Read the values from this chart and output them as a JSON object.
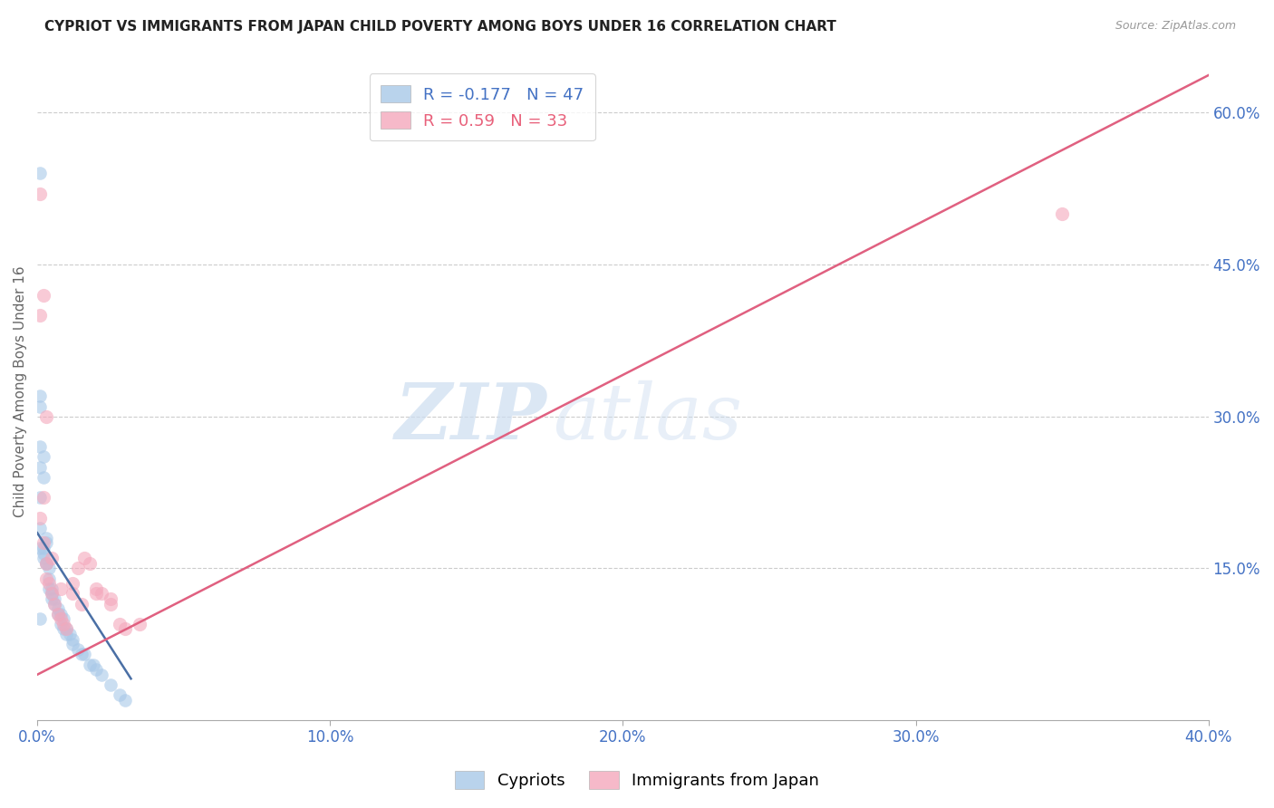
{
  "title": "CYPRIOT VS IMMIGRANTS FROM JAPAN CHILD POVERTY AMONG BOYS UNDER 16 CORRELATION CHART",
  "source": "Source: ZipAtlas.com",
  "ylabel_label": "Child Poverty Among Boys Under 16",
  "legend_label1": "Cypriots",
  "legend_label2": "Immigrants from Japan",
  "R1": -0.177,
  "N1": 47,
  "R2": 0.59,
  "N2": 33,
  "color_blue": "#a8c8e8",
  "color_pink": "#f4a8bc",
  "color_blue_line": "#4a6fa5",
  "color_pink_line": "#e06080",
  "color_text_blue": "#4472c4",
  "color_text_pink": "#e8607a",
  "watermark_zip": "ZIP",
  "watermark_atlas": "atlas",
  "xlim": [
    0.0,
    0.4
  ],
  "ylim": [
    0.0,
    0.65
  ],
  "x_ticks": [
    0.0,
    0.1,
    0.2,
    0.3,
    0.4
  ],
  "x_tick_labels": [
    "0.0%",
    "10.0%",
    "20.0%",
    "30.0%",
    "40.0%"
  ],
  "y_ticks_right": [
    0.15,
    0.3,
    0.45,
    0.6
  ],
  "y_tick_labels_right": [
    "15.0%",
    "30.0%",
    "45.0%",
    "60.0%"
  ],
  "cypriot_x": [
    0.001,
    0.001,
    0.001,
    0.001,
    0.001,
    0.001,
    0.002,
    0.002,
    0.002,
    0.003,
    0.003,
    0.004,
    0.004,
    0.005,
    0.005,
    0.006,
    0.007,
    0.008,
    0.009,
    0.01,
    0.011,
    0.012,
    0.015,
    0.018,
    0.02,
    0.001,
    0.001,
    0.002,
    0.002,
    0.003,
    0.003,
    0.004,
    0.005,
    0.006,
    0.007,
    0.008,
    0.009,
    0.01,
    0.012,
    0.014,
    0.016,
    0.019,
    0.022,
    0.025,
    0.028,
    0.03,
    0.001
  ],
  "cypriot_y": [
    0.54,
    0.27,
    0.25,
    0.22,
    0.19,
    0.17,
    0.17,
    0.165,
    0.16,
    0.155,
    0.155,
    0.15,
    0.14,
    0.13,
    0.12,
    0.12,
    0.11,
    0.105,
    0.1,
    0.09,
    0.085,
    0.08,
    0.065,
    0.055,
    0.05,
    0.32,
    0.31,
    0.26,
    0.24,
    0.18,
    0.175,
    0.13,
    0.125,
    0.115,
    0.105,
    0.095,
    0.09,
    0.085,
    0.075,
    0.07,
    0.065,
    0.055,
    0.045,
    0.035,
    0.025,
    0.02,
    0.1
  ],
  "japan_x": [
    0.001,
    0.001,
    0.002,
    0.002,
    0.003,
    0.003,
    0.004,
    0.005,
    0.006,
    0.007,
    0.008,
    0.009,
    0.01,
    0.012,
    0.014,
    0.016,
    0.018,
    0.02,
    0.022,
    0.025,
    0.028,
    0.03,
    0.035,
    0.001,
    0.002,
    0.003,
    0.005,
    0.008,
    0.012,
    0.015,
    0.02,
    0.35,
    0.025
  ],
  "japan_y": [
    0.52,
    0.2,
    0.42,
    0.22,
    0.3,
    0.14,
    0.135,
    0.125,
    0.115,
    0.105,
    0.1,
    0.095,
    0.09,
    0.135,
    0.15,
    0.16,
    0.155,
    0.13,
    0.125,
    0.12,
    0.095,
    0.09,
    0.095,
    0.4,
    0.175,
    0.155,
    0.16,
    0.13,
    0.125,
    0.115,
    0.125,
    0.5,
    0.115
  ],
  "blue_line_x": [
    0.0,
    0.032
  ],
  "blue_line_slope": -4.5,
  "blue_line_intercept": 0.185,
  "pink_line_x": [
    0.0,
    0.4
  ],
  "pink_line_slope": 1.48,
  "pink_line_intercept": 0.045
}
